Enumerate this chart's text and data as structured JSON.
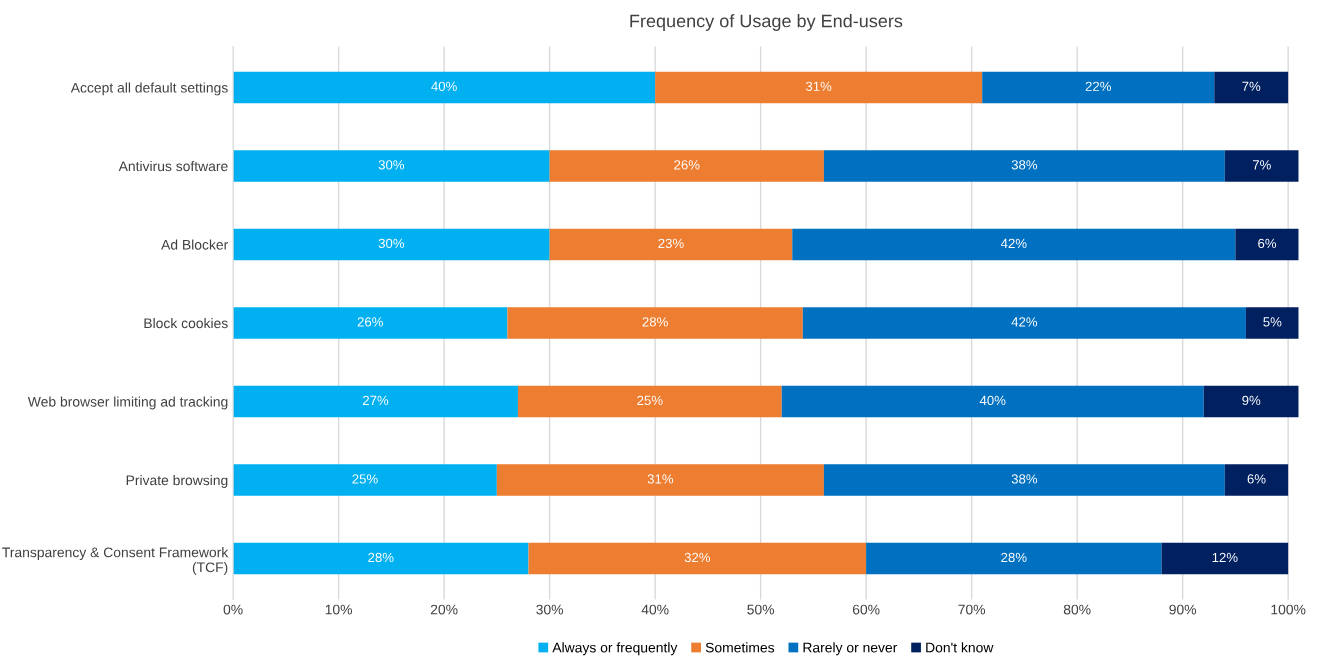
{
  "chart_data": {
    "type": "bar",
    "title": "Frequency of Usage by End-users",
    "orientation": "horizontal",
    "stacked": true,
    "categories": [
      "Accept all default settings",
      "Antivirus software",
      "Ad Blocker",
      "Block cookies",
      "Web browser limiting ad tracking",
      "Private browsing",
      "Transparency & Consent Framework\n(TCF)"
    ],
    "series": [
      {
        "name": "Always or frequently",
        "color": "#00b0f0",
        "values": [
          40,
          30,
          30,
          26,
          27,
          25,
          28
        ],
        "value_labels": [
          "40%",
          "30%",
          "30%",
          "26%",
          "27%",
          "25%",
          "28%"
        ]
      },
      {
        "name": "Sometimes",
        "color": "#ed7d31",
        "values": [
          31,
          26,
          23,
          28,
          25,
          31,
          32
        ],
        "value_labels": [
          "31%",
          "26%",
          "23%",
          "28%",
          "25%",
          "31%",
          "32%"
        ]
      },
      {
        "name": "Rarely or never",
        "color": "#0070c0",
        "values": [
          22,
          38,
          42,
          42,
          40,
          38,
          28
        ],
        "value_labels": [
          "22%",
          "38%",
          "42%",
          "42%",
          "40%",
          "38%",
          "28%"
        ]
      },
      {
        "name": "Don't know",
        "color": "#002060",
        "values": [
          7,
          7,
          6,
          5,
          9,
          6,
          12
        ],
        "value_labels": [
          "7%",
          "7%",
          "6%",
          "5%",
          "9%",
          "6%",
          "12%"
        ]
      }
    ],
    "xlim": [
      0,
      101
    ],
    "xticks": [
      {
        "value": 0,
        "label": "0%"
      },
      {
        "value": 10,
        "label": "10%"
      },
      {
        "value": 20,
        "label": "20%"
      },
      {
        "value": 30,
        "label": "30%"
      },
      {
        "value": 40,
        "label": "40%"
      },
      {
        "value": 50,
        "label": "50%"
      },
      {
        "value": 60,
        "label": "60%"
      },
      {
        "value": 70,
        "label": "70%"
      },
      {
        "value": 80,
        "label": "80%"
      },
      {
        "value": 90,
        "label": "90%"
      },
      {
        "value": 100,
        "label": "100%"
      }
    ],
    "grid": "x",
    "legend": "bottom"
  }
}
